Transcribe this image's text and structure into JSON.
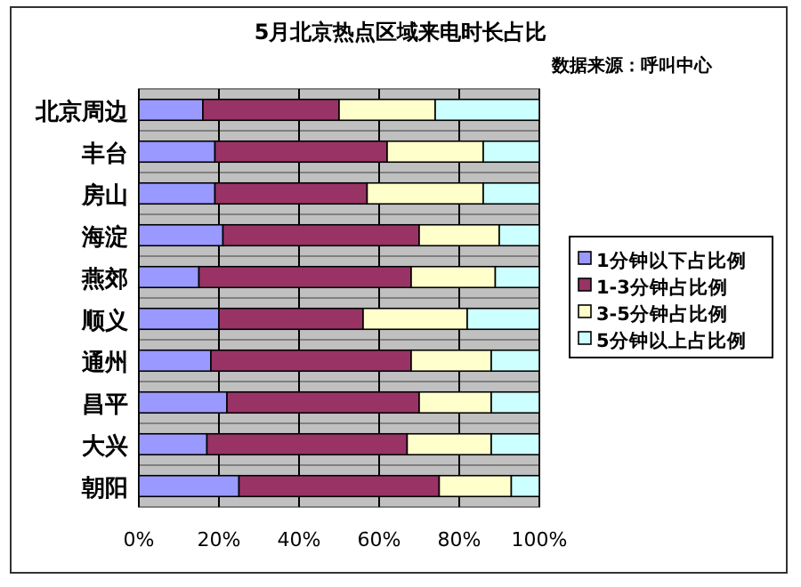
{
  "chart_data": {
    "type": "bar",
    "orientation": "horizontal",
    "stacked": true,
    "title": "5月北京热点区域来电时长占比",
    "annotations": [
      "数据来源：呼叫中心"
    ],
    "categories": [
      "北京周边",
      "丰台",
      "房山",
      "海淀",
      "燕郊",
      "顺义",
      "通州",
      "昌平",
      "大兴",
      "朝阳"
    ],
    "series": [
      {
        "name": "1分钟以下占比例",
        "color": "#9999ff",
        "values": [
          16,
          19,
          19,
          21,
          15,
          20,
          18,
          22,
          17,
          25
        ]
      },
      {
        "name": "1-3分钟占比例",
        "color": "#993366",
        "values": [
          34,
          43,
          38,
          49,
          53,
          36,
          50,
          48,
          50,
          50
        ]
      },
      {
        "name": "3-5分钟占比例",
        "color": "#ffffcc",
        "values": [
          24,
          24,
          29,
          20,
          21,
          26,
          20,
          18,
          21,
          18
        ]
      },
      {
        "name": "5分钟以上占比例",
        "color": "#ccffff",
        "values": [
          26,
          14,
          14,
          10,
          11,
          18,
          12,
          12,
          12,
          7
        ]
      }
    ],
    "xlim": [
      0,
      100
    ],
    "xticks": [
      {
        "value": 0,
        "label": "0%"
      },
      {
        "value": 20,
        "label": "20%"
      },
      {
        "value": 40,
        "label": "40%"
      },
      {
        "value": 60,
        "label": "60%"
      },
      {
        "value": 80,
        "label": "80%"
      },
      {
        "value": 100,
        "label": "100%"
      }
    ],
    "grid": "x",
    "legend": "right"
  }
}
